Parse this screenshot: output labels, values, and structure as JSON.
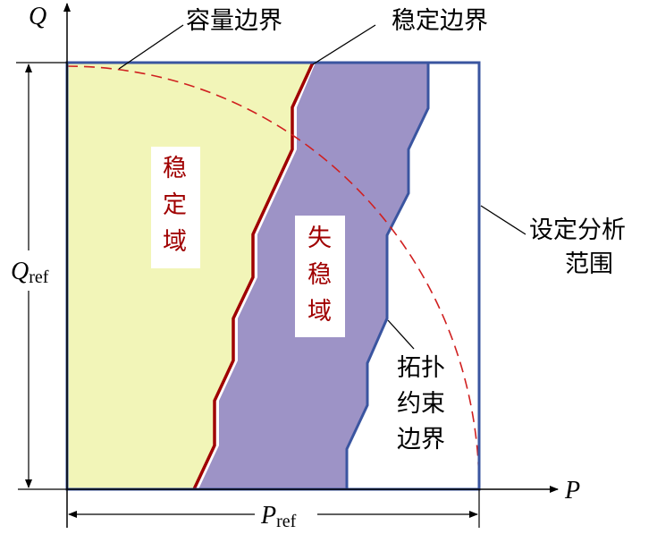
{
  "axes": {
    "x_label": "P",
    "y_label": "Q",
    "x_ref_label": "P",
    "x_ref_sub": "ref",
    "y_ref_label": "Q",
    "y_ref_sub": "ref"
  },
  "annotations": {
    "capacity_boundary": "容量边界",
    "stability_boundary": "稳定边界",
    "analysis_range": [
      "设定分析",
      "范围"
    ],
    "topology_boundary": [
      "拓扑",
      "约束",
      "边界"
    ]
  },
  "regions": {
    "stable": [
      "稳",
      "定",
      "域"
    ],
    "unstable": [
      "失",
      "稳",
      "域"
    ]
  },
  "colors": {
    "stable_fill": "#f2f5b8",
    "unstable_fill": "#9d93c6",
    "stability_line": "#a00000",
    "capacity_arc": "#d02020",
    "frame": "#3a55a0",
    "label_text": "#a00000"
  }
}
